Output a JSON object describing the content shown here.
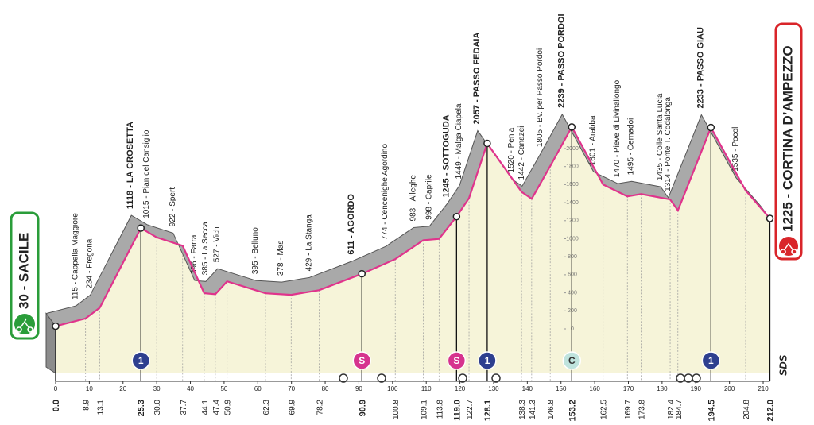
{
  "chart_data": {
    "type": "area",
    "x": [
      0,
      8.9,
      13.1,
      25.3,
      30,
      37.7,
      44.1,
      47.4,
      50.9,
      62.3,
      69.9,
      78.2,
      90.9,
      100.8,
      109.1,
      113.8,
      119,
      122.7,
      128.1,
      138.3,
      141.3,
      146.8,
      153.2,
      162.5,
      169.7,
      173.8,
      182.4,
      184.7,
      194.5,
      204.8,
      212
    ],
    "x_labels": [
      "0.0",
      "8.9",
      "13.1",
      "25.3",
      "30.0",
      "37.7",
      "44.1",
      "47.4",
      "50.9",
      "62.3",
      "69.9",
      "78.2",
      "90.9",
      "100.8",
      "109.1",
      "113.8",
      "119.0",
      "122.7",
      "128.1",
      "138.3",
      "141.3",
      "146.8",
      "153.2",
      "162.5",
      "169.7",
      "173.8",
      "182.4",
      "184.7",
      "194.5",
      "204.8",
      "212.0"
    ],
    "values": [
      30,
      115,
      234,
      1118,
      1015,
      922,
      396,
      385,
      527,
      395,
      378,
      429,
      611,
      774,
      983,
      998,
      1245,
      1449,
      2057,
      1520,
      1442,
      1805,
      2239,
      1601,
      1470,
      1495,
      1435,
      1314,
      2233,
      1535,
      1225
    ],
    "value_labels": [
      "30 - SACILE",
      "115 - Cappella Maggiore",
      "234 - Fregona",
      "1118 - LA CROSETTA",
      "1015 - Pian del Cansiglio",
      "922 - Spert",
      "396 - Farra",
      "385 - La Secca",
      "527 - Vich",
      "395 - Belluno",
      "378 - Mas",
      "429 - La Stanga",
      "611 - AGORDO",
      "774 - Cencenighe Agordino",
      "983 - Alleghe",
      "998 - Caprile",
      "1245 - SOTTOGUDA",
      "1449 - Malga Ciapela",
      "2057 - PASSO FEDAIA",
      "1520 - Penia",
      "1442 - Canazei",
      "1805 - Bv. per Passo Pordoi",
      "2239 - PASSO PORDOI",
      "1601 - Arabba",
      "1470 - Pieve di Livinallongo",
      "1495 - Cernadoi",
      "1435 - Colle Santa Lucia",
      "1314 - Ponte T. Codalonga",
      "2233 - PASSO GIAU",
      "1535 - Pocol",
      "1225 - CORTINA D’AMPEZZO"
    ],
    "bold": [
      true,
      false,
      false,
      true,
      false,
      false,
      false,
      false,
      false,
      false,
      false,
      false,
      true,
      false,
      false,
      false,
      true,
      false,
      true,
      false,
      false,
      false,
      true,
      false,
      false,
      false,
      false,
      false,
      true,
      false,
      true
    ],
    "color": "#e0338c",
    "xlim": [
      0,
      212
    ],
    "xticks": [
      0,
      10,
      20,
      30,
      40,
      50,
      60,
      70,
      80,
      90,
      100,
      110,
      120,
      130,
      140,
      150,
      160,
      170,
      180,
      190,
      200,
      210
    ],
    "ylim": [
      0,
      2000
    ],
    "yticks": [
      0,
      200,
      400,
      600,
      800,
      1000,
      1200,
      1400,
      1600,
      1800,
      2000
    ],
    "markers": [
      {
        "x": 25.3,
        "label": "1",
        "color": "#2e3f8f"
      },
      {
        "x": 90.9,
        "label": "S",
        "color": "#d6338e"
      },
      {
        "x": 119,
        "label": "S",
        "color": "#d6338e"
      },
      {
        "x": 128.1,
        "label": "1",
        "color": "#2e3f8f"
      },
      {
        "x": 153.2,
        "label": "C",
        "color": "#bfe3dd"
      },
      {
        "x": 194.5,
        "label": "1",
        "color": "#2e3f8f"
      }
    ],
    "logo": "SDS"
  }
}
